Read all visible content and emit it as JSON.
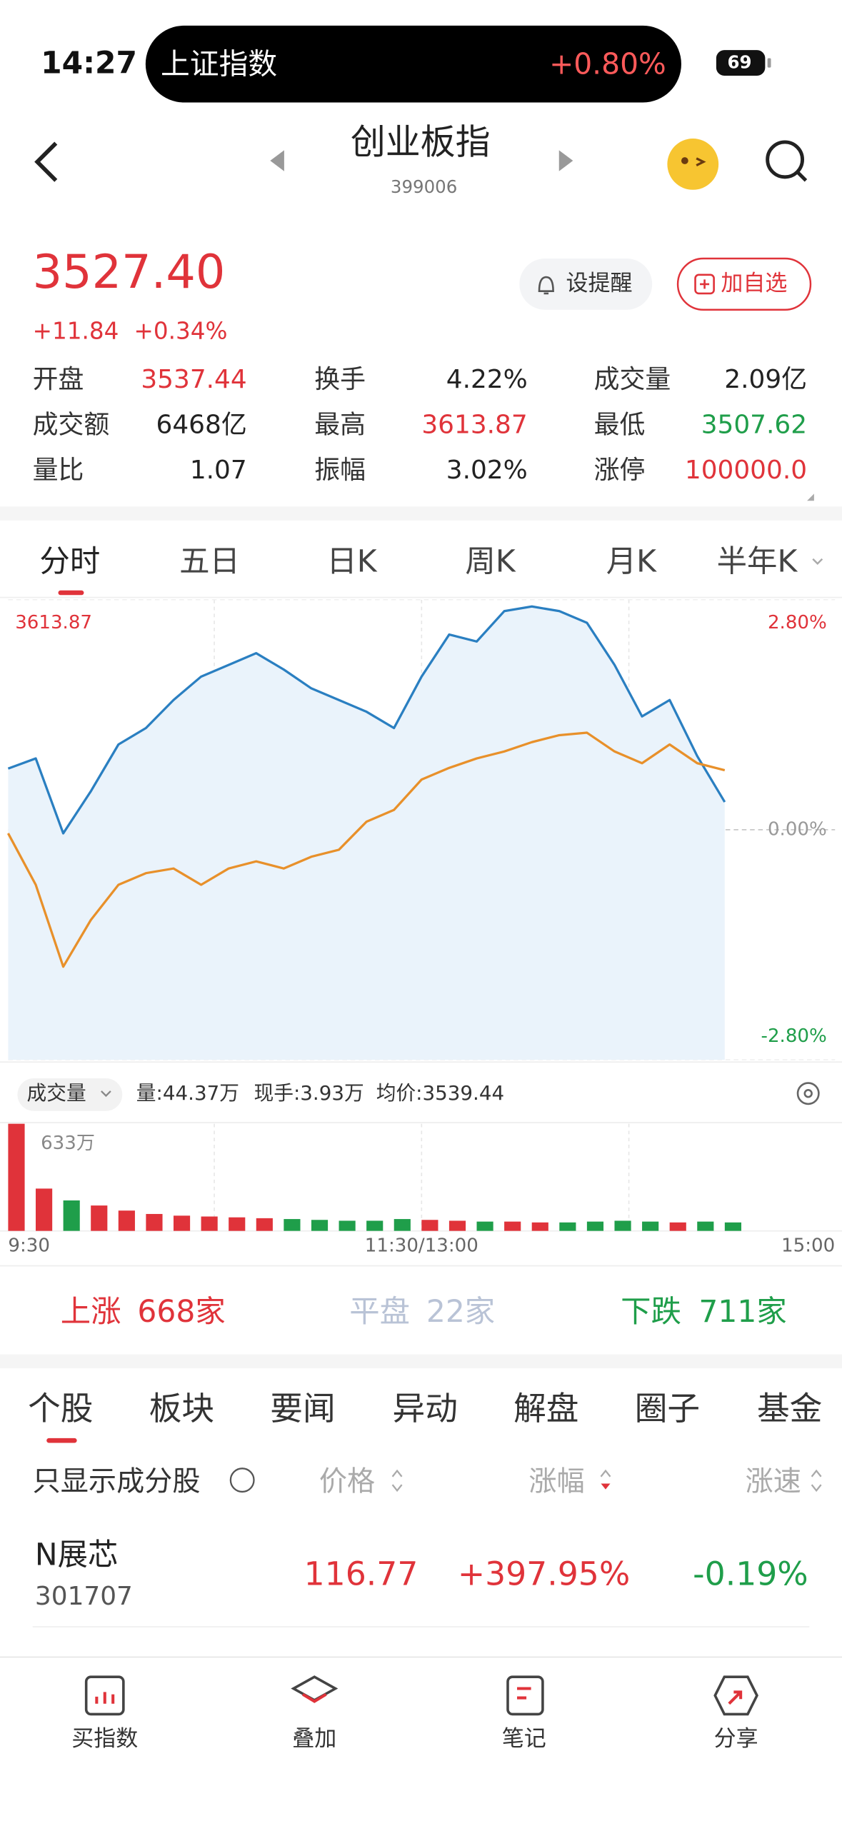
{
  "status_bar": {
    "time": "14:27",
    "ticker": "上证指数",
    "ticker_change": "+0.80%",
    "battery": "69"
  },
  "header": {
    "title": "创业板指",
    "code": "399006"
  },
  "quote": {
    "price": "3527.40",
    "change": "+11.84",
    "change_pct": "+0.34%",
    "remind_button": "设提醒",
    "watch_button": "加自选",
    "stats": [
      {
        "label": "开盘",
        "value": "3537.44",
        "color": "#e0333a"
      },
      {
        "label": "换手",
        "value": "4.22%",
        "color": "#222222"
      },
      {
        "label": "成交量",
        "value": "2.09亿",
        "color": "#222222"
      },
      {
        "label": "成交额",
        "value": "6468亿",
        "color": "#222222"
      },
      {
        "label": "最高",
        "value": "3613.87",
        "color": "#e0333a"
      },
      {
        "label": "最低",
        "value": "3507.62",
        "color": "#1f9e4a"
      },
      {
        "label": "量比",
        "value": "1.07",
        "color": "#222222"
      },
      {
        "label": "振幅",
        "value": "3.02%",
        "color": "#222222"
      },
      {
        "label": "涨停",
        "value": "100000.0",
        "color": "#e0333a"
      }
    ]
  },
  "chart_tabs": [
    "分时",
    "五日",
    "日K",
    "周K",
    "月K",
    "半年K"
  ],
  "chart_data": [
    {
      "type": "line",
      "xlim": [
        0,
        240
      ],
      "ylim": [
        3417.25,
        3613.87
      ],
      "yticks": [
        3613.87,
        3515.56,
        3417.25
      ],
      "y2lim": [
        -2.8,
        2.8
      ],
      "y2ticks": [
        {
          "value": 2.8,
          "label": "2.80%"
        },
        {
          "value": 0,
          "label": "0.00%"
        },
        {
          "value": -2.8,
          "label": "-2.80%"
        }
      ],
      "x": [
        0,
        8,
        16,
        24,
        32,
        40,
        48,
        56,
        64,
        72,
        80,
        88,
        96,
        104,
        112,
        120,
        128,
        136,
        144,
        152,
        160,
        168,
        176,
        184,
        192,
        200,
        208
      ],
      "series": [
        {
          "color": "#2a7fc1",
          "fill": "#eaf3fb",
          "values": [
            3541.7,
            3546,
            3514,
            3532,
            3552,
            3559,
            3571,
            3581,
            3586,
            3591,
            3584,
            3576,
            3571,
            3566,
            3559,
            3581,
            3599,
            3596,
            3609,
            3611,
            3609,
            3604,
            3586,
            3564,
            3571,
            3547,
            3527.4
          ]
        },
        {
          "color": "#e8902a",
          "values": [
            3514,
            3492,
            3457,
            3477,
            3492,
            3497,
            3499,
            3492,
            3499,
            3502,
            3499,
            3504,
            3507,
            3519,
            3524,
            3537,
            3542,
            3546,
            3549,
            3553,
            3556,
            3557,
            3549,
            3544,
            3552,
            3544,
            3541
          ]
        }
      ]
    },
    {
      "type": "bar",
      "xlim": [
        0,
        240
      ],
      "ylim": [
        0,
        633
      ],
      "yticks": [
        {
          "value": 633,
          "label": "633万"
        }
      ],
      "xticks": [
        {
          "value": 0,
          "label": "9:30"
        },
        {
          "value": 120,
          "label": "11:30/13:00"
        },
        {
          "value": 240,
          "label": "15:00"
        }
      ],
      "x": [
        0,
        8,
        16,
        24,
        32,
        40,
        48,
        56,
        64,
        72,
        80,
        88,
        96,
        104,
        112,
        120,
        128,
        136,
        144,
        152,
        160,
        168,
        176,
        184,
        192,
        200,
        208
      ],
      "values": [
        633,
        250,
        180,
        150,
        120,
        100,
        90,
        85,
        80,
        75,
        70,
        65,
        60,
        60,
        70,
        65,
        60,
        55,
        55,
        50,
        50,
        55,
        60,
        55,
        50,
        55,
        50
      ],
      "up_color": "#e0333a",
      "down_color": "#1f9e4a"
    }
  ],
  "volume_info": {
    "selector": "成交量",
    "volume": "量:44.37万",
    "last_trade": "现手:3.93万",
    "avg_price": "均价:3539.44"
  },
  "breadth": {
    "up_label": "上涨",
    "up_count": "668家",
    "flat_label": "平盘",
    "flat_count": "22家",
    "down_label": "下跌",
    "down_count": "711家"
  },
  "list_tabs": [
    "个股",
    "板块",
    "要闻",
    "异动",
    "解盘",
    "圈子",
    "基金"
  ],
  "list_header": {
    "filter": "只显示成分股",
    "price": "价格",
    "change": "涨幅",
    "speed": "涨速"
  },
  "rows": [
    {
      "name": "N展芯",
      "code": "301707",
      "price": "116.77",
      "change": "+397.95%",
      "speed": "-0.19%"
    }
  ],
  "bottom_nav": [
    "买指数",
    "叠加",
    "笔记",
    "分享"
  ]
}
